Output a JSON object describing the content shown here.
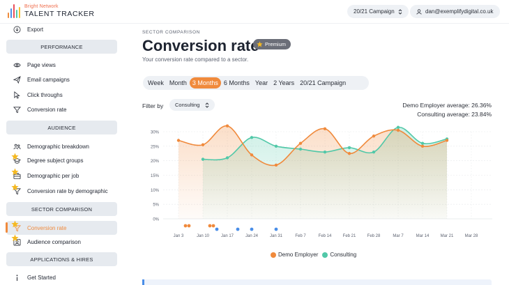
{
  "header": {
    "brand": "Bright Network",
    "product": "TALENT TRACKER",
    "campaign_select": "20/21 Campaign",
    "user_email": "dan@exemplifydigital.co.uk",
    "logo_colors": [
      "#f08a3c",
      "#4a8ee8",
      "#e84f5a",
      "#51c8a8",
      "#f5c033"
    ]
  },
  "sidebar": {
    "export_label": "Export",
    "sections": {
      "performance": "PERFORMANCE",
      "audience": "AUDIENCE",
      "sector": "SECTOR COMPARISON",
      "applications": "APPLICATIONS & HIRES"
    },
    "items": {
      "page_views": "Page views",
      "email_campaigns": "Email campaigns",
      "click_throughs": "Click throughs",
      "conversion_rate": "Conversion rate",
      "demographic_breakdown": "Demographic breakdown",
      "degree_subject_groups": "Degree subject groups",
      "demographic_per_job": "Demographic per job",
      "conversion_rate_by_demographic": "Conversion rate by demographic",
      "sector_conversion_rate": "Conversion rate",
      "audience_comparison": "Audience comparison",
      "get_started": "Get Started"
    }
  },
  "main": {
    "eyebrow": "SECTOR COMPARISON",
    "title": "Conversion rate",
    "premium_badge": "Premium",
    "subtitle": "Your conversion rate compared to a sector.",
    "ranges": [
      "Week",
      "Month",
      "3 Months",
      "6 Months",
      "Year",
      "2 Years",
      "20/21 Campaign"
    ],
    "active_range": "3 Months",
    "filter_label": "Filter by",
    "filter_value": "Consulting",
    "avg_employer": "Demo Employer average: 26.36%",
    "avg_sector": "Consulting average: 23.84%"
  },
  "colors": {
    "employer": "#f08a3c",
    "sector": "#51c8a8",
    "event": "#4a8ee8",
    "accent": "#f08a3c"
  },
  "chart_data": {
    "type": "line",
    "x_ticks": [
      "Jan 3",
      "Jan 10",
      "Jan 17",
      "Jan 24",
      "Jan 31",
      "Feb 7",
      "Feb 14",
      "Feb 21",
      "Feb 28",
      "Mar 7",
      "Mar 14",
      "Mar 21",
      "Mar 28"
    ],
    "y_ticks": [
      "0%",
      "5%",
      "10%",
      "15%",
      "20%",
      "25%",
      "30%"
    ],
    "ylim": [
      0,
      30
    ],
    "grid": true,
    "legend_position": "bottom",
    "series": [
      {
        "name": "Demo Employer",
        "dates": [
          "Jan 3",
          "Jan 10",
          "Jan 17",
          "Jan 24",
          "Jan 31",
          "Feb 7",
          "Feb 14",
          "Feb 21",
          "Feb 28",
          "Mar 7",
          "Mar 14",
          "Mar 21"
        ],
        "values": [
          27,
          25.5,
          32,
          22,
          18.5,
          26,
          31,
          22.5,
          28.5,
          30.5,
          25,
          27
        ]
      },
      {
        "name": "Consulting",
        "dates": [
          "Jan 10",
          "Jan 17",
          "Jan 24",
          "Jan 31",
          "Feb 7",
          "Feb 14",
          "Feb 21",
          "Feb 28",
          "Mar 7",
          "Mar 14",
          "Mar 21"
        ],
        "values": [
          20.5,
          21,
          28,
          25,
          24,
          23,
          24.5,
          23,
          31.5,
          26,
          27.5
        ]
      }
    ],
    "markers": {
      "orange_dates": [
        "Jan 5",
        "Jan 6",
        "Jan 12",
        "Jan 13"
      ],
      "blue_dates": [
        "Jan 14",
        "Jan 20",
        "Jan 24",
        "Jan 31"
      ]
    }
  }
}
